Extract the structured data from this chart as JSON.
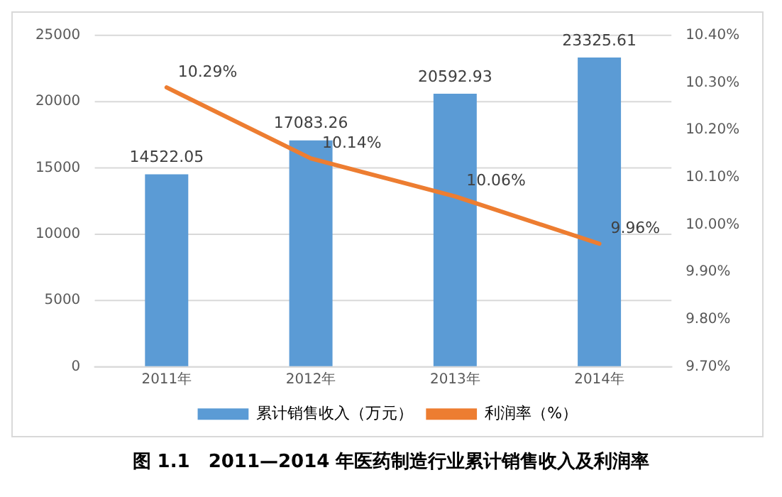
{
  "chart_data": {
    "type": "bar",
    "categories": [
      "2011年",
      "2012年",
      "2013年",
      "2014年"
    ],
    "series": [
      {
        "name": "累计销售收入（万元）",
        "color": "#5b9bd5",
        "values": [
          14522.05,
          17083.26,
          20592.93,
          23325.61
        ],
        "value_labels": [
          "14522.05",
          "17083.26",
          "20592.93",
          "23325.61"
        ]
      },
      {
        "name": "利润率（%）",
        "type": "line",
        "axis": "y2",
        "color": "#ed7d31",
        "values": [
          10.29,
          10.14,
          10.06,
          9.96
        ],
        "value_labels": [
          "10.29%",
          "10.14%",
          "10.06%",
          "9.96%"
        ]
      }
    ],
    "ylim": [
      0,
      25000
    ],
    "yticks": [
      0,
      5000,
      10000,
      15000,
      20000,
      25000
    ],
    "y2lim": [
      9.7,
      10.4
    ],
    "y2ticks": [
      {
        "value": 9.7,
        "label": "9.70%"
      },
      {
        "value": 9.8,
        "label": "9.80%"
      },
      {
        "value": 9.9,
        "label": "9.90%"
      },
      {
        "value": 10.0,
        "label": "10.00%"
      },
      {
        "value": 10.1,
        "label": "10.10%"
      },
      {
        "value": 10.2,
        "label": "10.20%"
      },
      {
        "value": 10.3,
        "label": "10.30%"
      },
      {
        "value": 10.4,
        "label": "10.40%"
      }
    ],
    "grid": "y",
    "legend": "bottom",
    "marker": "none",
    "annotations": [
      "图 1.1　2011—2014 年医药制造行业累计销售收入及利润率"
    ]
  }
}
